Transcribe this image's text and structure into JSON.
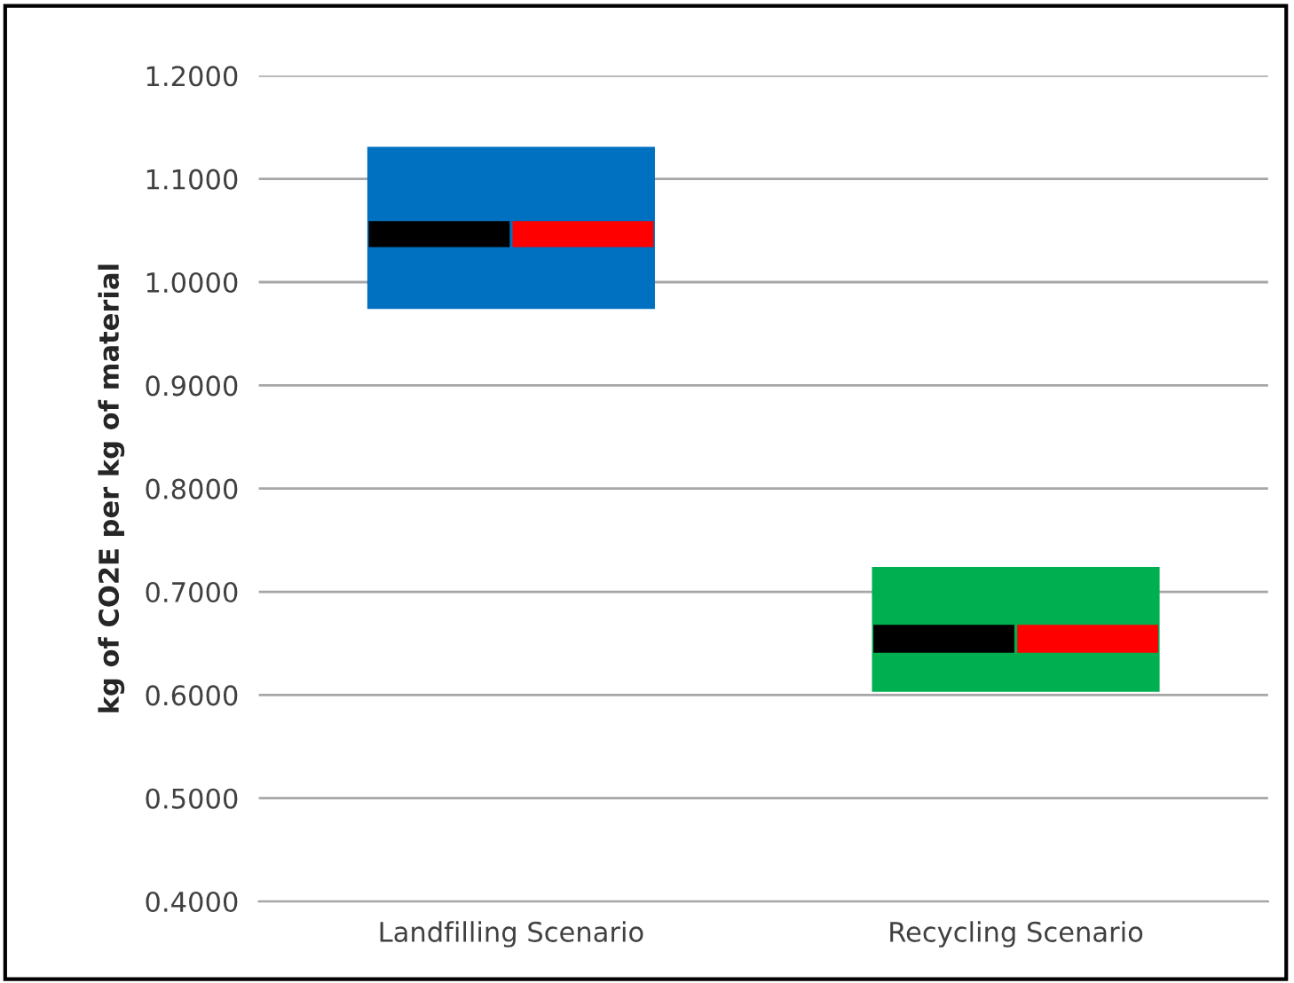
{
  "chart_data": {
    "type": "bar",
    "ylabel": "kg of CO2E per kg of material",
    "categories": [
      "Landfilling Scenario",
      "Recycling Scenario"
    ],
    "series": [
      {
        "colors": [
          "#0070c0",
          "#00b050"
        ],
        "base": [
          0.974,
          0.603
        ],
        "values": [
          0.157,
          0.121
        ]
      },
      {
        "color": "#000000",
        "base": [
          1.034,
          0.641
        ],
        "values": [
          0.025,
          0.027
        ]
      },
      {
        "color": "#ff0000",
        "base": [
          1.034,
          0.641
        ],
        "values": [
          0.025,
          0.027
        ]
      }
    ],
    "ylim": [
      0.4,
      1.2
    ],
    "yticks": [
      {
        "value": 0.4,
        "label": "0.4000"
      },
      {
        "value": 0.5,
        "label": "0.5000"
      },
      {
        "value": 0.6,
        "label": "0.6000"
      },
      {
        "value": 0.7,
        "label": "0.7000"
      },
      {
        "value": 0.8,
        "label": "0.8000"
      },
      {
        "value": 0.9,
        "label": "0.9000"
      },
      {
        "value": 1.0,
        "label": "1.0000"
      },
      {
        "value": 1.1,
        "label": "1.1000"
      },
      {
        "value": 1.2,
        "label": "1.2000"
      }
    ],
    "grid": "y",
    "legend": false
  }
}
